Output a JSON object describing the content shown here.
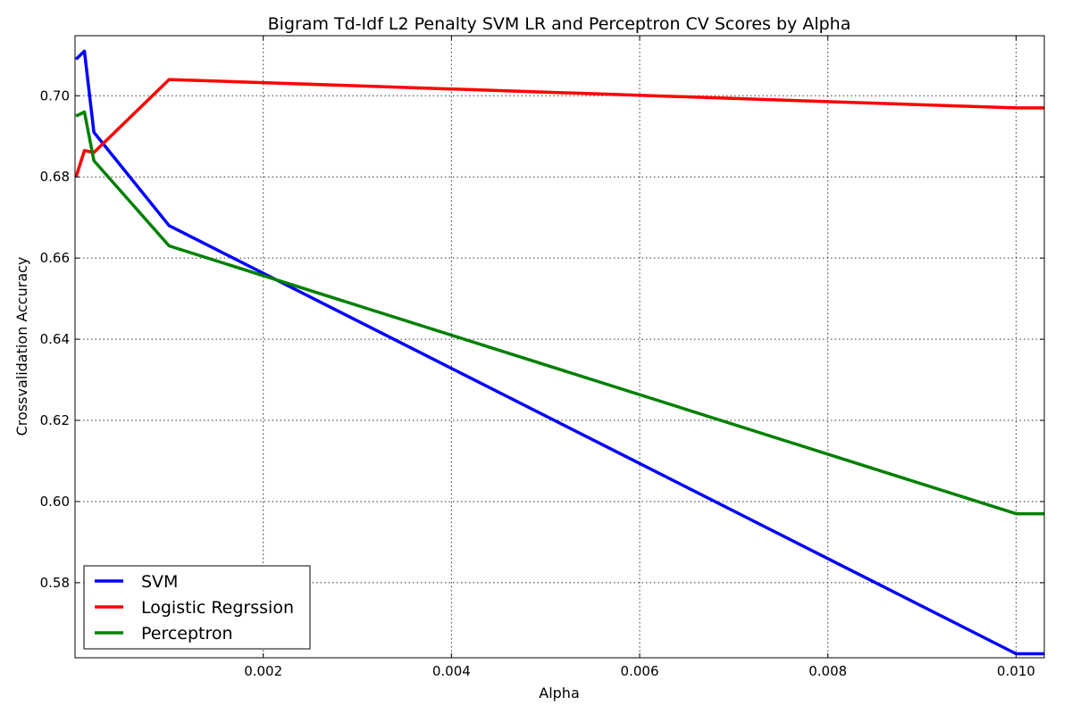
{
  "chart_data": {
    "type": "line",
    "title": "Bigram Td-Idf L2 Penalty SVM LR and Perceptron CV Scores by Alpha",
    "xlabel": "Alpha",
    "ylabel": "Crossvalidation Accuracy",
    "xlim": [
      0.0,
      0.0103
    ],
    "ylim": [
      0.5615,
      0.7148
    ],
    "xticks": [
      0.002,
      0.004,
      0.006,
      0.008,
      0.01
    ],
    "xtick_labels": [
      "0.002",
      "0.004",
      "0.006",
      "0.008",
      "0.010"
    ],
    "yticks": [
      0.58,
      0.6,
      0.62,
      0.64,
      0.66,
      0.68,
      0.7
    ],
    "ytick_labels": [
      "0.58",
      "0.60",
      "0.62",
      "0.64",
      "0.66",
      "0.68",
      "0.70"
    ],
    "grid": true,
    "legend_position": "lower-left",
    "series": [
      {
        "name": "SVM",
        "color": "#0000ff",
        "x": [
          1e-05,
          0.0001,
          0.0002,
          0.001,
          0.01,
          0.0103
        ],
        "y": [
          0.709,
          0.711,
          0.691,
          0.668,
          0.5625,
          0.5625
        ]
      },
      {
        "name": "Logistic Regrssion",
        "color": "#ff0000",
        "x": [
          1e-05,
          0.0001,
          0.0002,
          0.001,
          0.01,
          0.0103
        ],
        "y": [
          0.68,
          0.6865,
          0.686,
          0.704,
          0.697,
          0.697
        ]
      },
      {
        "name": "Perceptron",
        "color": "#008000",
        "x": [
          1e-05,
          0.0001,
          0.0002,
          0.001,
          0.01,
          0.0103
        ],
        "y": [
          0.695,
          0.696,
          0.684,
          0.663,
          0.597,
          0.597
        ]
      }
    ]
  }
}
